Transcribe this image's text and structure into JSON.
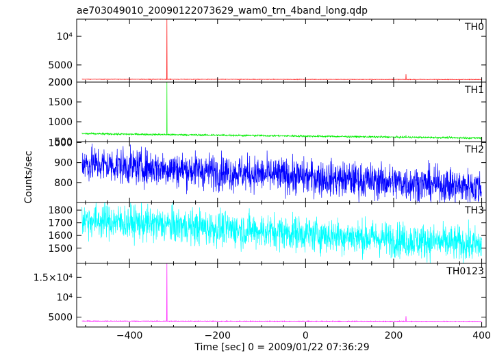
{
  "chart_data": {
    "type": "line",
    "title": "ae703049010_20090122073629_wam0_trn_4band_long.qdp",
    "xlabel": "Time [sec] 0 = 2009/01/22 07:36:29",
    "ylabel": "Counts/sec",
    "xlim": [
      -520,
      410
    ],
    "x_ticks": [
      -400,
      -200,
      0,
      200,
      400
    ],
    "x_tick_labels": [
      "−400",
      "−200",
      "0",
      "200",
      "400"
    ],
    "x_data_range": [
      -508,
      400
    ],
    "panels": [
      {
        "name": "TH0",
        "color": "#ff0000",
        "ylim": [
          2000,
          13000
        ],
        "y_ticks": [
          2000,
          5000,
          10000
        ],
        "y_tick_labels": [
          "2000",
          "5000",
          "10⁴"
        ],
        "baseline_start": 2500,
        "baseline_end": 2450,
        "noise": 25,
        "spikes": [
          {
            "x": -315,
            "y": 13000
          },
          {
            "x": 228,
            "y": 3400
          }
        ]
      },
      {
        "name": "TH1",
        "color": "#00ee00",
        "ylim": [
          500,
          2000
        ],
        "y_ticks": [
          500,
          1000,
          1500,
          2000
        ],
        "y_tick_labels": [
          "500",
          "1000",
          "1500",
          "2000"
        ],
        "baseline_start": 700,
        "baseline_end": 590,
        "noise": 12,
        "spikes": [
          {
            "x": -315,
            "y": 2000
          },
          {
            "x": 228,
            "y": 660
          }
        ]
      },
      {
        "name": "TH2",
        "color": "#0000ff",
        "ylim": [
          700,
          1005
        ],
        "y_ticks": [
          800,
          900,
          1000
        ],
        "y_tick_labels": [
          "800",
          "900",
          "1000"
        ],
        "baseline_start": 895,
        "baseline_end": 775,
        "noise": 45,
        "spikes": []
      },
      {
        "name": "TH3",
        "color": "#00ffff",
        "ylim": [
          1380,
          1860
        ],
        "y_ticks": [
          1500,
          1600,
          1700,
          1800
        ],
        "y_tick_labels": [
          "1500",
          "1600",
          "1700",
          "1800"
        ],
        "baseline_start": 1725,
        "baseline_end": 1525,
        "noise": 70,
        "spikes": []
      },
      {
        "name": "TH0123",
        "color": "#ff00ff",
        "ylim": [
          2500,
          18500
        ],
        "y_ticks": [
          5000,
          10000,
          15000
        ],
        "y_tick_labels": [
          "5000",
          "10⁴",
          "1.5×10⁴"
        ],
        "baseline_start": 4000,
        "baseline_end": 3900,
        "noise": 45,
        "spikes": [
          {
            "x": -315,
            "y": 18500
          },
          {
            "x": 228,
            "y": 5200
          }
        ]
      }
    ]
  }
}
